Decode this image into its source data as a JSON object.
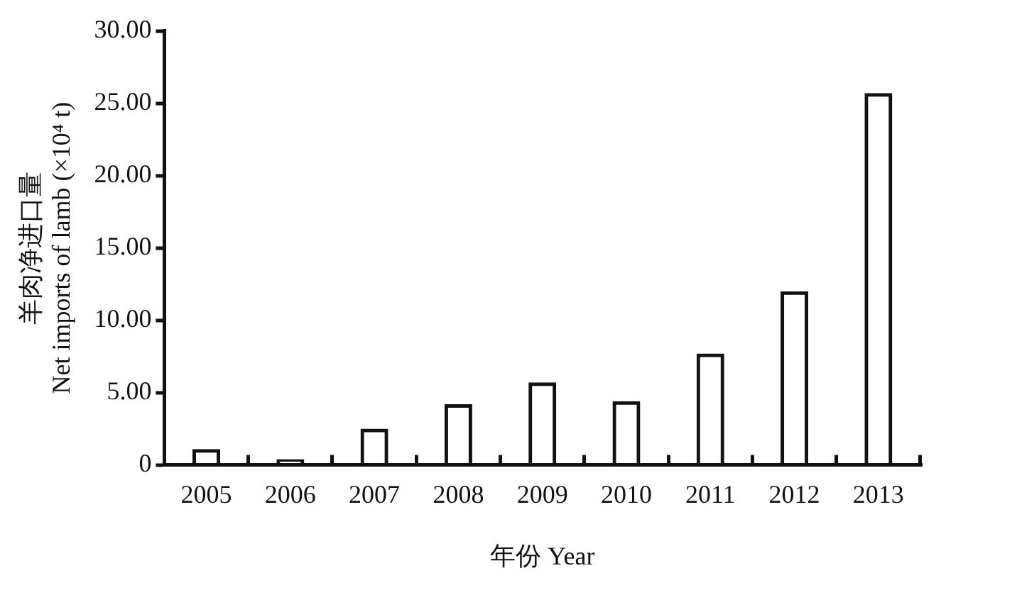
{
  "chart_data": {
    "type": "bar",
    "xlabel": "年份 Year",
    "ylabel": "羊肉净进口量\nNet imports of lamb (×10⁴ t)",
    "categories": [
      "2005",
      "2006",
      "2007",
      "2008",
      "2009",
      "2010",
      "2011",
      "2012",
      "2013"
    ],
    "values": [
      1.1,
      0.4,
      2.5,
      4.2,
      5.7,
      4.4,
      7.7,
      12.0,
      25.7
    ],
    "color": "#111111",
    "ylim": [
      0,
      30
    ],
    "yticks": [
      {
        "value": 0,
        "label": "0"
      },
      {
        "value": 5,
        "label": "5.00"
      },
      {
        "value": 10,
        "label": "10.00"
      },
      {
        "value": 15,
        "label": "15.00"
      },
      {
        "value": 20,
        "label": "20.00"
      },
      {
        "value": 25,
        "label": "25.00"
      },
      {
        "value": 30,
        "label": "30.00"
      }
    ],
    "grid": false,
    "legend": false
  }
}
